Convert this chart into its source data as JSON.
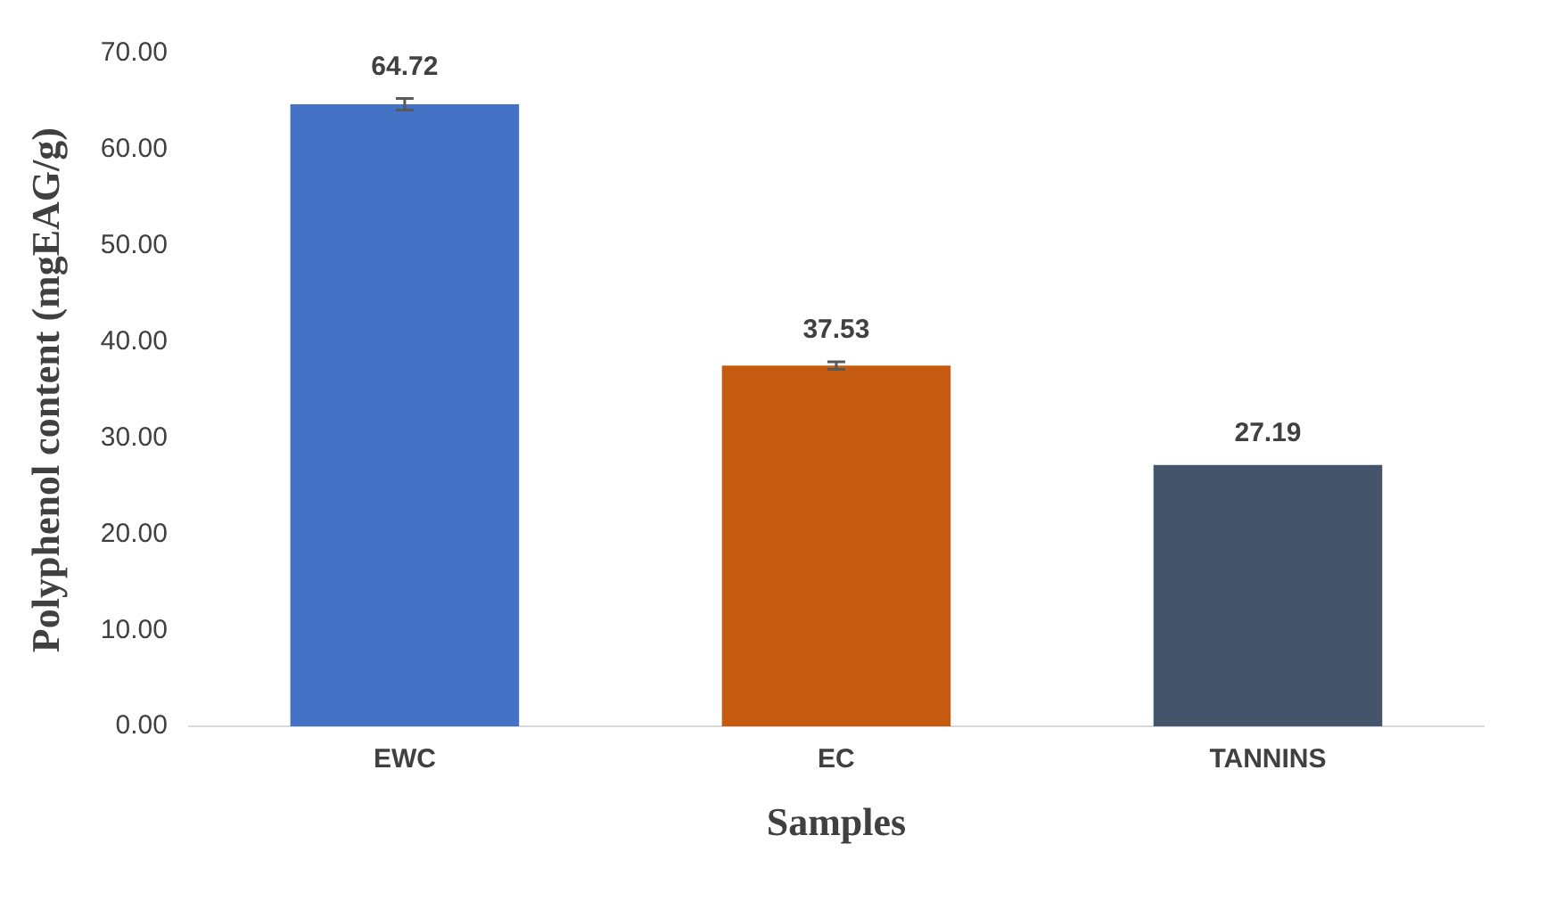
{
  "chart_data": {
    "type": "bar",
    "xlabel": "Samples",
    "ylabel": "Polyphenol content (mgEAG/g)",
    "categories": [
      "EWC",
      "EC",
      "TANNINS"
    ],
    "values": [
      64.72,
      37.53,
      27.19
    ],
    "colors": [
      "#4472c4",
      "#c55a11",
      "#44546a"
    ],
    "errors": [
      0.6,
      0.4,
      null
    ],
    "ylim": [
      0,
      70
    ],
    "yticks": [
      {
        "value": 0,
        "label": "0.00"
      },
      {
        "value": 10,
        "label": "10.00"
      },
      {
        "value": 20,
        "label": "20.00"
      },
      {
        "value": 30,
        "label": "30.00"
      },
      {
        "value": 40,
        "label": "40.00"
      },
      {
        "value": 50,
        "label": "50.00"
      },
      {
        "value": 60,
        "label": "60.00"
      },
      {
        "value": 70,
        "label": "70.00"
      }
    ],
    "data_labels": true,
    "grid": false,
    "legend": false
  }
}
